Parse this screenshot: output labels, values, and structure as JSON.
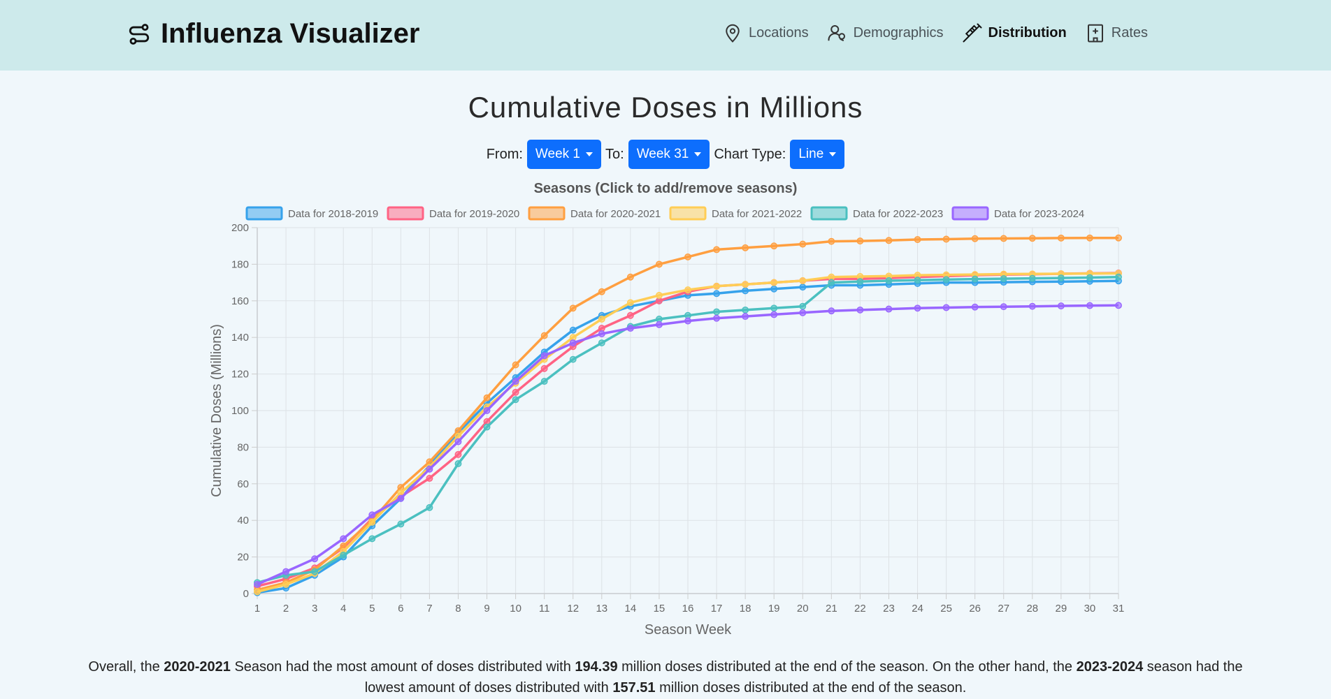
{
  "app": {
    "title": "Influenza Visualizer",
    "nav": [
      {
        "label": "Locations",
        "icon": "map-pin-icon",
        "active": false
      },
      {
        "label": "Demographics",
        "icon": "user-group-icon",
        "active": false
      },
      {
        "label": "Distribution",
        "icon": "syringe-icon",
        "active": true
      },
      {
        "label": "Rates",
        "icon": "hospital-icon",
        "active": false
      }
    ]
  },
  "page": {
    "title": "Cumulative Doses in Millions",
    "from_label": "From:",
    "from_value": "Week 1",
    "to_label": "To:",
    "to_value": "Week 31",
    "type_label": "Chart Type:",
    "type_value": "Line"
  },
  "chart_data": {
    "type": "line",
    "title": "Seasons (Click to add/remove seasons)",
    "xlabel": "Season Week",
    "ylabel": "Cumulative Doses (Millions)",
    "ylim": [
      0,
      200
    ],
    "yticks": [
      0,
      20,
      40,
      60,
      80,
      100,
      120,
      140,
      160,
      180,
      200
    ],
    "x": [
      1,
      2,
      3,
      4,
      5,
      6,
      7,
      8,
      9,
      10,
      11,
      12,
      13,
      14,
      15,
      16,
      17,
      18,
      19,
      20,
      21,
      22,
      23,
      24,
      25,
      26,
      27,
      28,
      29,
      30,
      31
    ],
    "grid": true,
    "legend": "top",
    "series": [
      {
        "name": "Data for 2018-2019",
        "color": "#36a2eb",
        "values": [
          0.5,
          3,
          10,
          20,
          37,
          52,
          70,
          88,
          104,
          118,
          132,
          144,
          152,
          157,
          160,
          163,
          164,
          165.5,
          166.5,
          167.5,
          168.5,
          168.5,
          169,
          169.5,
          170,
          170,
          170.2,
          170.4,
          170.5,
          170.7,
          170.9
        ]
      },
      {
        "name": "Data for 2019-2020",
        "color": "#ff6384",
        "values": [
          4,
          8,
          14,
          25,
          41,
          53,
          63,
          76,
          94,
          110,
          123,
          135,
          145,
          152,
          160,
          165,
          168,
          169,
          170,
          171,
          172,
          172,
          172.5,
          173,
          173.5,
          174,
          174.3,
          174.5,
          174.8,
          175,
          175.2
        ]
      },
      {
        "name": "Data for 2020-2021",
        "color": "#ff9f40",
        "values": [
          2,
          6,
          13,
          26,
          40,
          58,
          72,
          89,
          107,
          125,
          141,
          156,
          165,
          173,
          180,
          184,
          188,
          189,
          190,
          191,
          192.5,
          192.7,
          193,
          193.5,
          193.7,
          194,
          194.1,
          194.2,
          194.3,
          194.35,
          194.39
        ]
      },
      {
        "name": "Data for 2021-2022",
        "color": "#ffcd56",
        "values": [
          1,
          5,
          11,
          23,
          39,
          55,
          69,
          86,
          102,
          115,
          128,
          140,
          150,
          159,
          163,
          166,
          168,
          169,
          170,
          171,
          173,
          173.3,
          173.5,
          174,
          174.2,
          174.4,
          174.6,
          174.7,
          174.8,
          174.9,
          175
        ]
      },
      {
        "name": "Data for 2022-2023",
        "color": "#4bc0c0",
        "values": [
          6,
          10,
          12,
          21,
          30,
          38,
          47,
          71,
          91,
          106,
          116,
          128,
          137,
          146,
          150,
          152,
          154,
          155,
          156,
          157,
          170,
          170.5,
          171,
          171.3,
          171.6,
          171.9,
          172.1,
          172.3,
          172.5,
          172.7,
          173
        ]
      },
      {
        "name": "Data for 2023-2024",
        "color": "#9966ff",
        "values": [
          5,
          12,
          19,
          30,
          43,
          52,
          68,
          83,
          100,
          116,
          130,
          137,
          142,
          145,
          147,
          149,
          150.5,
          151.5,
          152.5,
          153.5,
          154.5,
          155,
          155.5,
          156,
          156.3,
          156.6,
          156.8,
          157,
          157.2,
          157.4,
          157.51
        ]
      }
    ]
  },
  "summary": {
    "p1": "Overall, the ",
    "s1": "2020-2021",
    "p2": " Season had the most amount of doses distributed with ",
    "v1": "194.39",
    "p3": " million doses distributed at the end of the season. On the other hand, the ",
    "s2": "2023-2024",
    "p4": " season had the lowest amount of doses distributed with ",
    "v2": "157.51",
    "p5": " million doses distributed at the end of the season."
  }
}
